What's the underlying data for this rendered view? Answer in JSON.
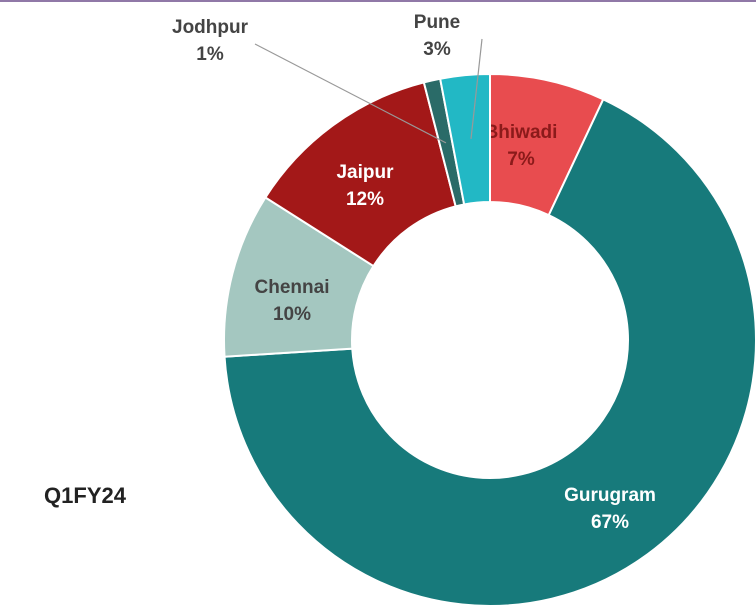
{
  "chart_data": {
    "type": "donut",
    "title": "Q1FY24",
    "categories": [
      "Bhiwadi",
      "Gurugram",
      "Chennai",
      "Jaipur",
      "Jodhpur",
      "Pune"
    ],
    "values": [
      7,
      67,
      10,
      12,
      1,
      3
    ],
    "value_labels": [
      "7%",
      "67%",
      "10%",
      "12%",
      "1%",
      "3%"
    ],
    "colors": [
      "#e84c4f",
      "#177a7b",
      "#a4c7c0",
      "#a31818",
      "#2a6b68",
      "#22b8c5"
    ]
  }
}
